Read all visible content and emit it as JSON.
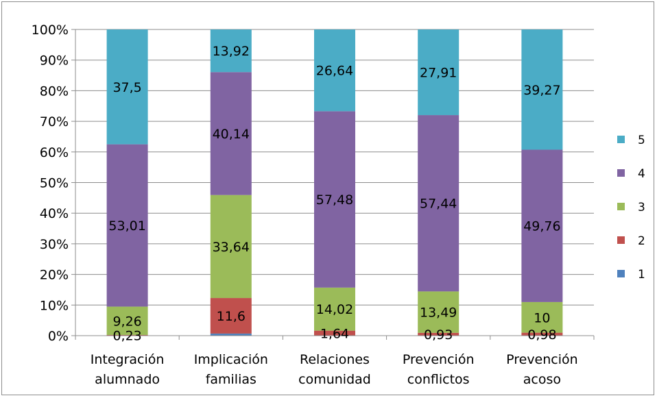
{
  "chart_data": {
    "type": "bar",
    "stacked": "percent",
    "categories": [
      [
        "Integración",
        "alumnado"
      ],
      [
        "Implicación",
        "familias"
      ],
      [
        "Relaciones",
        "comunidad"
      ],
      [
        "Prevención",
        "conflictos"
      ],
      [
        "Prevención",
        "acoso"
      ]
    ],
    "ylim": [
      0,
      100
    ],
    "yticks": [
      "0%",
      "10%",
      "20%",
      "30%",
      "40%",
      "50%",
      "60%",
      "70%",
      "80%",
      "90%",
      "100%"
    ],
    "grid": true,
    "legend_position": "right",
    "series": [
      {
        "name": "1",
        "color": "#4f81bd",
        "values": [
          0,
          0.69,
          0,
          0,
          0
        ],
        "labels": [
          "",
          "",
          "",
          "",
          ""
        ]
      },
      {
        "name": "2",
        "color": "#c0504d",
        "values": [
          0.23,
          11.6,
          1.64,
          0.93,
          0.98
        ],
        "labels": [
          "0,23",
          "11,6",
          "1,64",
          "0,93",
          "0,98"
        ]
      },
      {
        "name": "3",
        "color": "#9bbb59",
        "values": [
          9.26,
          33.64,
          14.02,
          13.49,
          10
        ],
        "labels": [
          "9,26",
          "33,64",
          "14,02",
          "13,49",
          "10"
        ]
      },
      {
        "name": "4",
        "color": "#8064a2",
        "values": [
          53.01,
          40.14,
          57.48,
          57.44,
          49.76
        ],
        "labels": [
          "53,01",
          "40,14",
          "57,48",
          "57,44",
          "49,76"
        ]
      },
      {
        "name": "5",
        "color": "#4bacc6",
        "values": [
          37.5,
          13.92,
          26.64,
          27.91,
          39.27
        ],
        "labels": [
          "37,5",
          "13,92",
          "26,64",
          "27,91",
          "39,27"
        ]
      }
    ]
  }
}
